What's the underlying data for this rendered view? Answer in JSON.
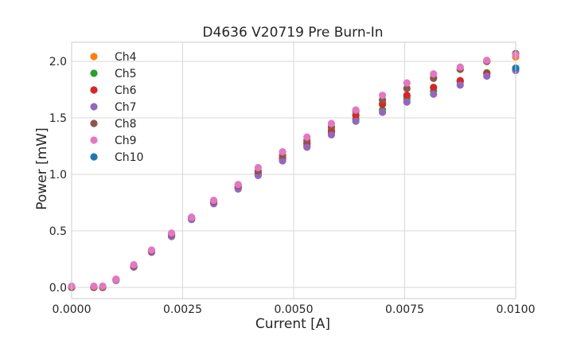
{
  "chart_data": {
    "type": "scatter",
    "title": "D4636 V20719 Pre Burn-In",
    "xlabel": "Current [A]",
    "ylabel": "Power [mW]",
    "xlim": [
      0.0,
      0.01
    ],
    "ylim": [
      -0.1,
      2.17
    ],
    "xticks": [
      0.0,
      0.0025,
      0.005,
      0.0075,
      0.01
    ],
    "xtick_labels": [
      "0.0000",
      "0.0025",
      "0.0050",
      "0.0075",
      "0.0100"
    ],
    "yticks": [
      0.0,
      0.5,
      1.0,
      1.5,
      2.0
    ],
    "ytick_labels": [
      "0.0",
      "0.5",
      "1.0",
      "1.5",
      "2.0"
    ],
    "grid": true,
    "legend_position": "top-left",
    "x": [
      0.0,
      0.0005,
      0.0007,
      0.001,
      0.0014,
      0.0018,
      0.00225,
      0.0027,
      0.0032,
      0.00375,
      0.0042,
      0.00475,
      0.0053,
      0.00585,
      0.0064,
      0.007,
      0.00755,
      0.00815,
      0.00875,
      0.00935,
      0.01
    ],
    "series": [
      {
        "name": "Ch4",
        "color": "#ff7f0e",
        "values": [
          0.0,
          0.0,
          0.0,
          0.07,
          0.18,
          0.32,
          0.47,
          0.61,
          0.75,
          0.89,
          1.01,
          1.15,
          1.28,
          1.4,
          1.53,
          1.63,
          1.69,
          1.86,
          1.93,
          2.0,
          2.04
        ]
      },
      {
        "name": "Ch5",
        "color": "#2ca02c",
        "values": [
          0.0,
          0.0,
          0.0,
          0.07,
          0.18,
          0.32,
          0.46,
          0.61,
          0.75,
          0.88,
          1.0,
          1.13,
          1.25,
          1.37,
          1.49,
          1.57,
          1.67,
          1.74,
          1.82,
          1.9,
          1.94
        ]
      },
      {
        "name": "Ch6",
        "color": "#d62728",
        "values": [
          0.0,
          0.0,
          0.0,
          0.07,
          0.18,
          0.32,
          0.46,
          0.61,
          0.75,
          0.88,
          1.01,
          1.14,
          1.27,
          1.38,
          1.52,
          1.62,
          1.7,
          1.77,
          1.83,
          1.89,
          1.93
        ]
      },
      {
        "name": "Ch7",
        "color": "#9467bd",
        "values": [
          0.0,
          0.0,
          0.0,
          0.06,
          0.18,
          0.31,
          0.45,
          0.6,
          0.74,
          0.87,
          0.99,
          1.12,
          1.24,
          1.35,
          1.47,
          1.55,
          1.64,
          1.71,
          1.79,
          1.87,
          1.92
        ]
      },
      {
        "name": "Ch8",
        "color": "#8c564b",
        "values": [
          0.0,
          0.0,
          0.0,
          0.07,
          0.19,
          0.32,
          0.47,
          0.62,
          0.76,
          0.9,
          1.03,
          1.17,
          1.3,
          1.42,
          1.56,
          1.66,
          1.76,
          1.85,
          1.93,
          2.0,
          2.07
        ]
      },
      {
        "name": "Ch9",
        "color": "#e377c2",
        "values": [
          0.01,
          0.01,
          0.01,
          0.07,
          0.2,
          0.33,
          0.48,
          0.62,
          0.77,
          0.91,
          1.06,
          1.2,
          1.33,
          1.45,
          1.57,
          1.7,
          1.81,
          1.89,
          1.95,
          2.01,
          2.06
        ]
      },
      {
        "name": "Ch10",
        "color": "#1f77b4",
        "values": [
          null,
          null,
          null,
          null,
          null,
          null,
          null,
          null,
          null,
          null,
          null,
          null,
          null,
          null,
          null,
          null,
          null,
          null,
          null,
          null,
          1.94
        ]
      }
    ]
  }
}
